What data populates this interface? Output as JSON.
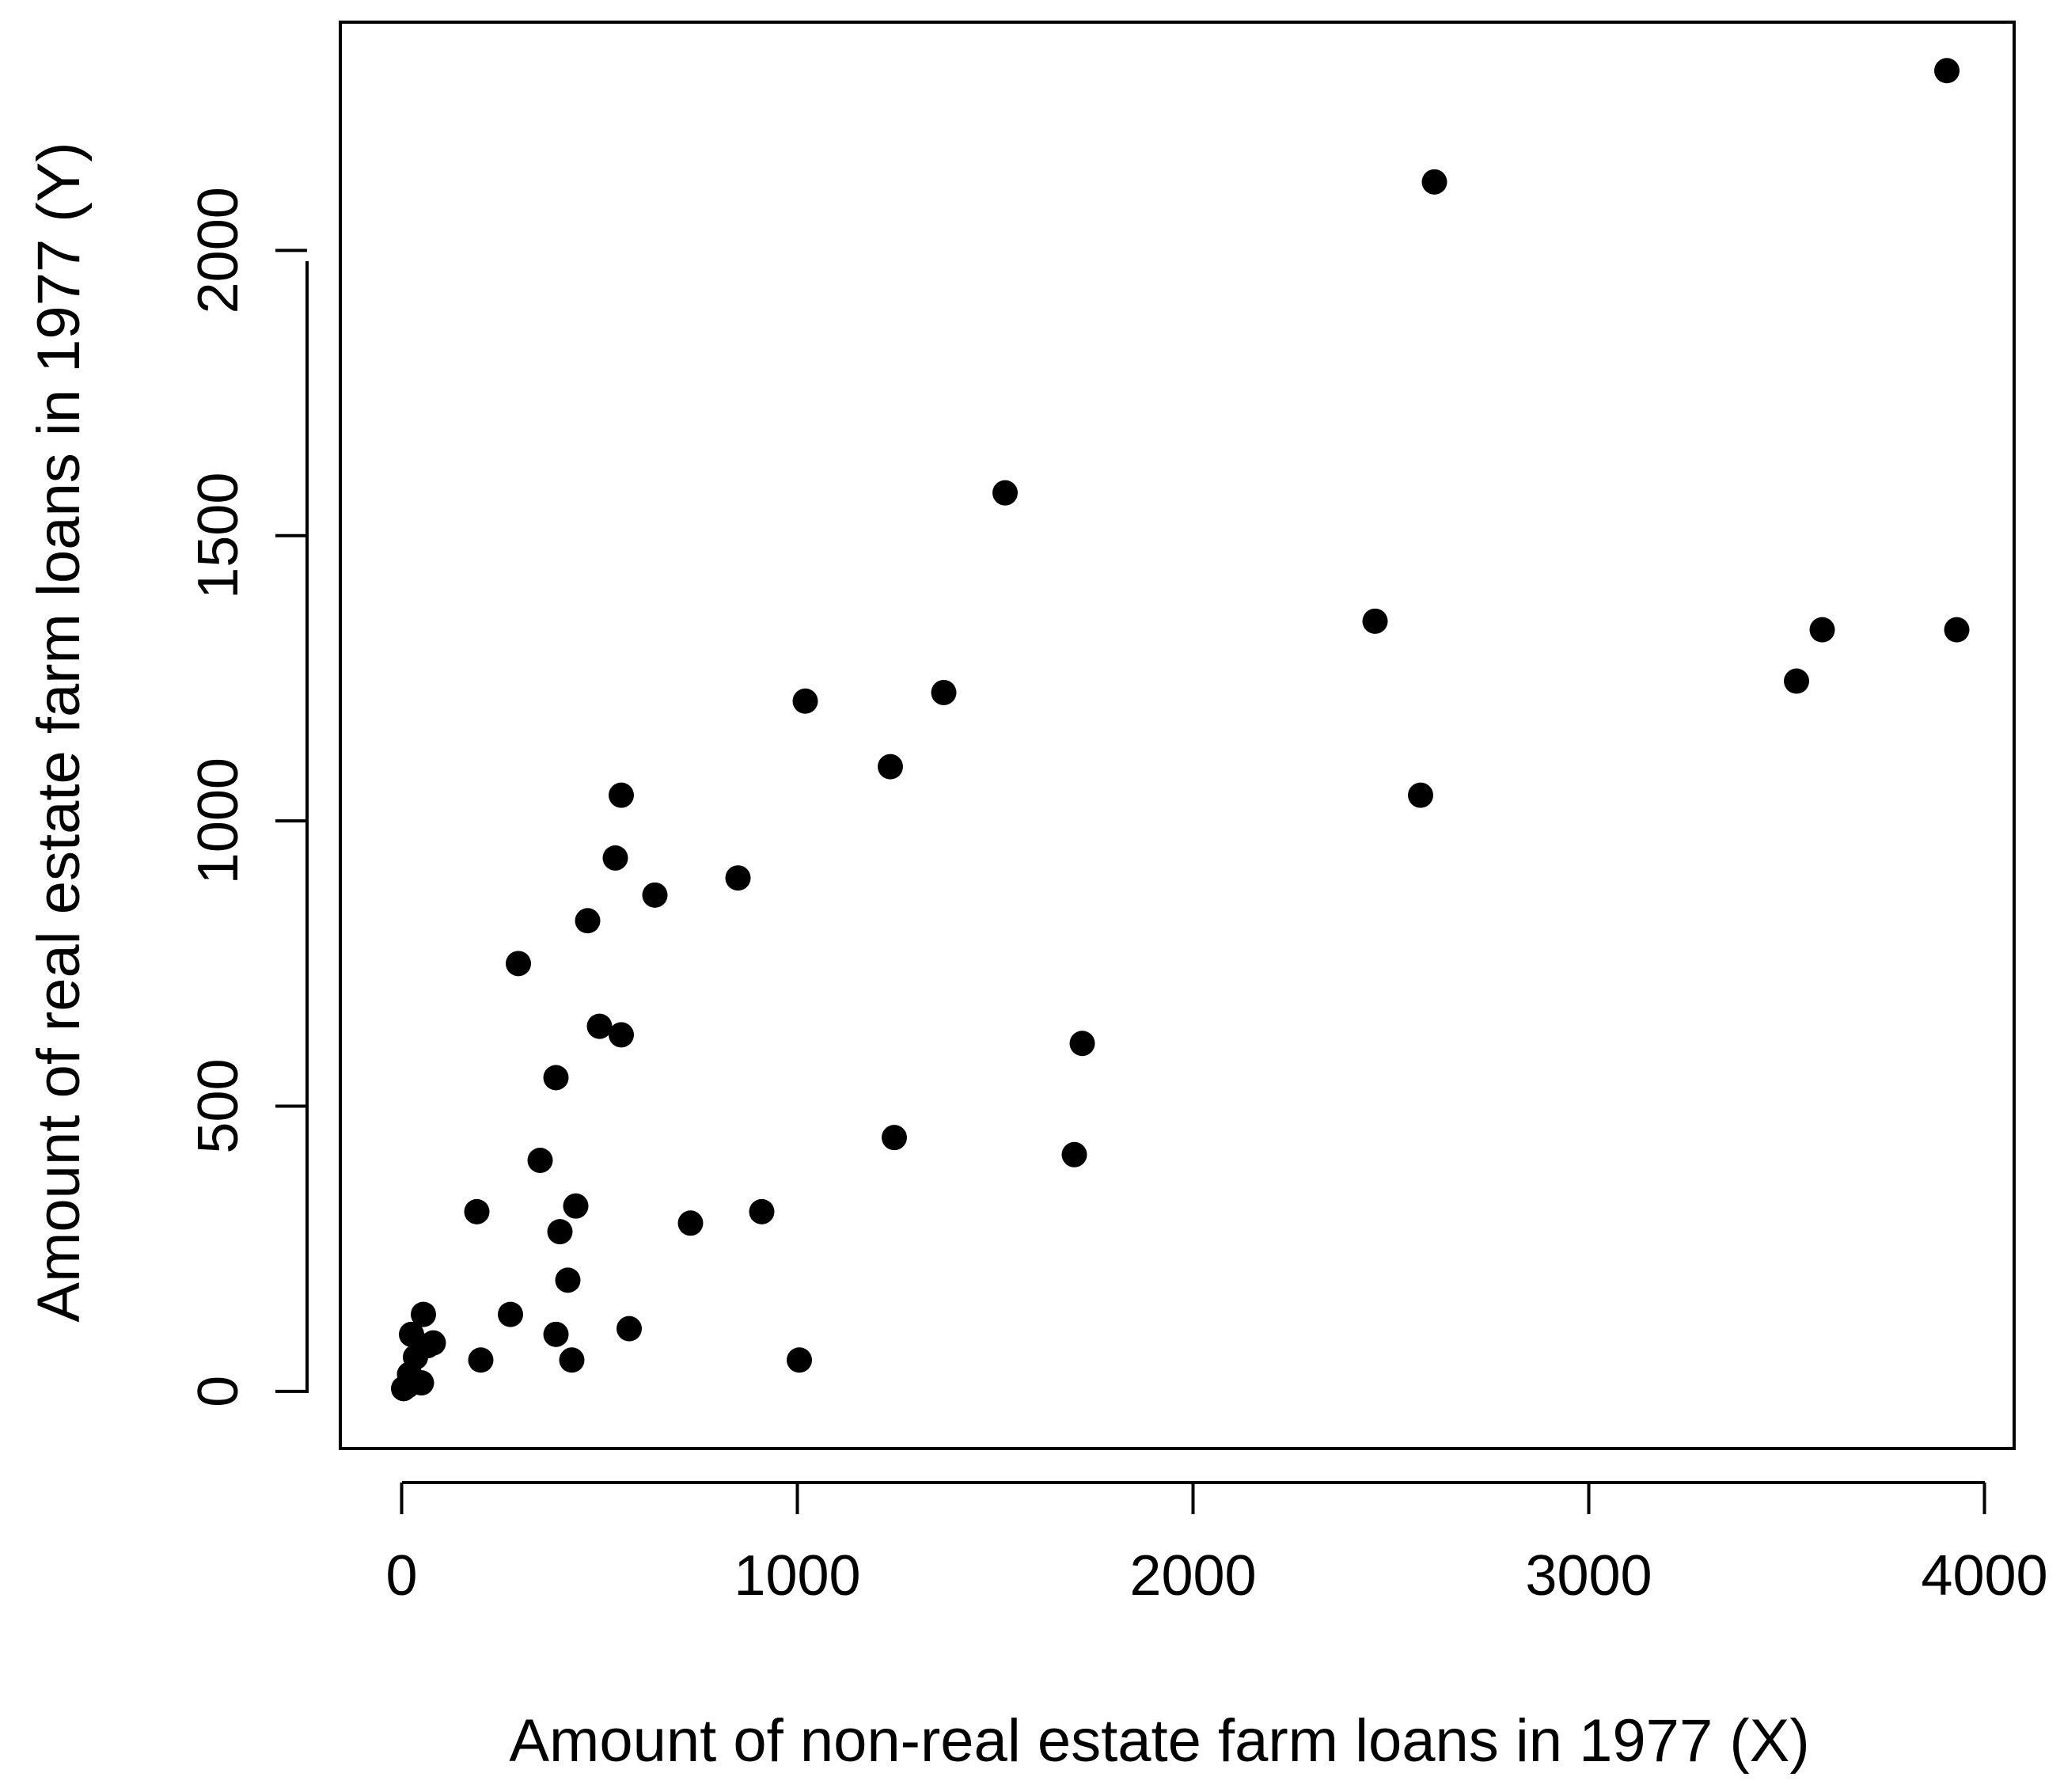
{
  "chart_data": {
    "type": "scatter",
    "title": "",
    "xlabel": "Amount of non-real estate farm loans in 1977 (X)",
    "ylabel": "Amount of real estate farm loans in 1977 (Y)",
    "xlim": [
      -155,
      4075
    ],
    "ylim": [
      -100,
      2400
    ],
    "x_ticks": [
      "0",
      "1000",
      "2000",
      "3000",
      "4000"
    ],
    "y_ticks": [
      "0",
      "500",
      "1000",
      "1500",
      "2000"
    ],
    "grid": false,
    "legend": "none",
    "marker_color": "#000000",
    "points": [
      {
        "x": 5,
        "y": 5
      },
      {
        "x": 15,
        "y": 10
      },
      {
        "x": 20,
        "y": 30
      },
      {
        "x": 30,
        "y": 20
      },
      {
        "x": 35,
        "y": 60
      },
      {
        "x": 25,
        "y": 100
      },
      {
        "x": 50,
        "y": 15
      },
      {
        "x": 55,
        "y": 135
      },
      {
        "x": 65,
        "y": 80
      },
      {
        "x": 80,
        "y": 85
      },
      {
        "x": 190,
        "y": 315
      },
      {
        "x": 200,
        "y": 55
      },
      {
        "x": 275,
        "y": 135
      },
      {
        "x": 295,
        "y": 750
      },
      {
        "x": 350,
        "y": 405
      },
      {
        "x": 390,
        "y": 550
      },
      {
        "x": 400,
        "y": 280
      },
      {
        "x": 390,
        "y": 100
      },
      {
        "x": 420,
        "y": 195
      },
      {
        "x": 440,
        "y": 325
      },
      {
        "x": 430,
        "y": 55
      },
      {
        "x": 470,
        "y": 825
      },
      {
        "x": 500,
        "y": 640
      },
      {
        "x": 540,
        "y": 935
      },
      {
        "x": 555,
        "y": 625
      },
      {
        "x": 555,
        "y": 1045
      },
      {
        "x": 575,
        "y": 110
      },
      {
        "x": 640,
        "y": 870
      },
      {
        "x": 730,
        "y": 295
      },
      {
        "x": 850,
        "y": 900
      },
      {
        "x": 910,
        "y": 315
      },
      {
        "x": 1005,
        "y": 55
      },
      {
        "x": 1020,
        "y": 1210
      },
      {
        "x": 1235,
        "y": 1095
      },
      {
        "x": 1245,
        "y": 445
      },
      {
        "x": 1370,
        "y": 1225
      },
      {
        "x": 1525,
        "y": 1575
      },
      {
        "x": 1700,
        "y": 415
      },
      {
        "x": 1720,
        "y": 610
      },
      {
        "x": 2460,
        "y": 1350
      },
      {
        "x": 2575,
        "y": 1045
      },
      {
        "x": 2610,
        "y": 2120
      },
      {
        "x": 3525,
        "y": 1245
      },
      {
        "x": 3590,
        "y": 1335
      },
      {
        "x": 3905,
        "y": 2315
      },
      {
        "x": 3930,
        "y": 1335
      }
    ]
  }
}
